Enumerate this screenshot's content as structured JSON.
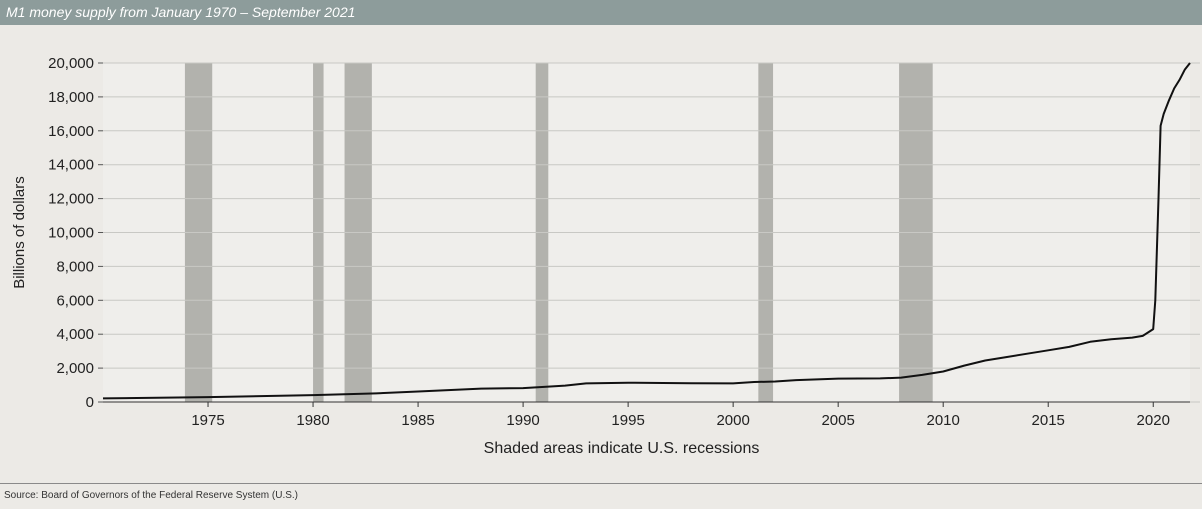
{
  "title": "M1 money supply from January 1970 – September 2021",
  "source": "Source: Board of Governors of the Federal Reserve System (U.S.)",
  "colors": {
    "title_bar": "#8d9c9b",
    "recession_shade": "#a7a7a2",
    "line": "#111111",
    "grid": "#c8c8c4"
  },
  "chart_data": {
    "type": "line",
    "ylabel": "Billions of dollars",
    "xlabel": "Shaded areas indicate U.S. recessions",
    "xlim": [
      1970,
      2021.75
    ],
    "ylim": [
      0,
      20000
    ],
    "yticks": [
      0,
      2000,
      4000,
      6000,
      8000,
      10000,
      12000,
      14000,
      16000,
      18000,
      20000
    ],
    "ytick_labels": [
      "0",
      "2,000",
      "4,000",
      "6,000",
      "8,000",
      "10,000",
      "12,000",
      "14,000",
      "16,000",
      "18,000",
      "20,000"
    ],
    "xticks": [
      1975,
      1980,
      1985,
      1990,
      1995,
      2000,
      2005,
      2010,
      2015,
      2020
    ],
    "xtick_labels": [
      "1975",
      "1980",
      "1985",
      "1990",
      "1995",
      "2000",
      "2005",
      "2010",
      "2015",
      "2020"
    ],
    "grid": "horizontal",
    "recessions": [
      [
        1973.9,
        1975.2
      ],
      [
        1980.0,
        1980.5
      ],
      [
        1981.5,
        1982.8
      ],
      [
        1990.6,
        1991.2
      ],
      [
        2001.2,
        2001.9
      ],
      [
        2007.9,
        2009.5
      ]
    ],
    "series": [
      {
        "x": [
          1970,
          1975,
          1980,
          1983,
          1985,
          1988,
          1990,
          1992,
          1993,
          1995,
          1998,
          2000,
          2001,
          2002,
          2003,
          2005,
          2007,
          2008,
          2009,
          2010,
          2011,
          2012,
          2013,
          2014,
          2015,
          2016,
          2017,
          2018,
          2019,
          2019.5,
          2020.0,
          2020.1,
          2020.25,
          2020.35,
          2020.5,
          2020.75,
          2021.0,
          2021.25,
          2021.5,
          2021.75
        ],
        "y": [
          210,
          290,
          410,
          510,
          620,
          790,
          820,
          970,
          1100,
          1140,
          1110,
          1100,
          1180,
          1210,
          1290,
          1380,
          1390,
          1440,
          1600,
          1800,
          2150,
          2450,
          2650,
          2850,
          3050,
          3250,
          3550,
          3700,
          3800,
          3900,
          4300,
          6000,
          12000,
          16300,
          17000,
          17800,
          18500,
          19000,
          19600,
          20000
        ]
      }
    ]
  }
}
